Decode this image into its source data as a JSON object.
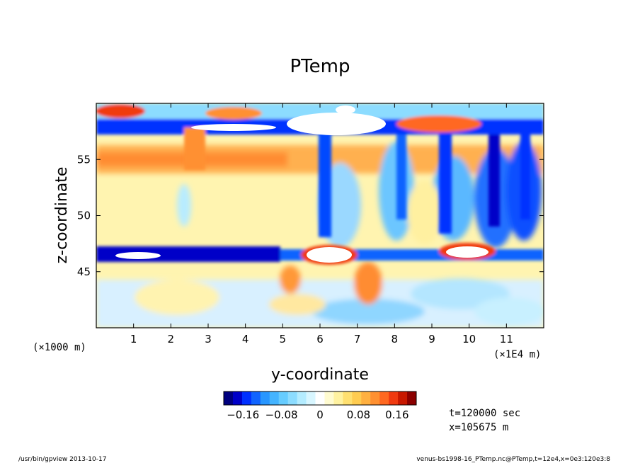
{
  "chart_data": {
    "type": "heatmap",
    "title": "PTemp",
    "xlabel": "y-coordinate",
    "ylabel": "z-coordinate",
    "x_units_left": "(×1000 m)",
    "x_units_right": "(×1E4 m)",
    "xlim": [
      0,
      12
    ],
    "ylim": [
      40,
      60
    ],
    "x_ticks": [
      1,
      2,
      3,
      4,
      5,
      6,
      7,
      8,
      9,
      10,
      11
    ],
    "y_ticks": [
      45,
      50,
      55
    ],
    "colorbar": {
      "ticks": [
        "−0.16",
        "−0.08",
        "0",
        "0.08",
        "0.16"
      ],
      "tick_values": [
        -0.16,
        -0.08,
        0,
        0.08,
        0.16
      ],
      "range": [
        -0.2,
        0.2
      ],
      "colors": [
        "#00007f",
        "#0000c8",
        "#0030ff",
        "#1064ff",
        "#2896ff",
        "#44b4ff",
        "#66ccff",
        "#8cdcff",
        "#b4ecff",
        "#d8f6ff",
        "#ffffff",
        "#fffbd0",
        "#fff2a0",
        "#ffe070",
        "#ffcc50",
        "#ffb040",
        "#ff9030",
        "#ff6820",
        "#f03a10",
        "#c81800",
        "#8b0000"
      ]
    },
    "features": [
      {
        "name": "lower blue band",
        "z": 46.5,
        "value": -0.2
      },
      {
        "name": "upper blue band",
        "z": 58,
        "value": -0.2
      },
      {
        "name": "warm layer",
        "z": 55,
        "value": 0.12
      },
      {
        "name": "red cap",
        "z": 59.3,
        "value": 0.18
      }
    ]
  },
  "info": {
    "time": "t=120000 sec",
    "position": "x=105675 m"
  },
  "footer": {
    "left": "/usr/bin/gpview  2013-10-17",
    "right": "venus-bs1998-16_PTemp.nc@PTemp,t=12e4,x=0e3:120e3:8"
  }
}
